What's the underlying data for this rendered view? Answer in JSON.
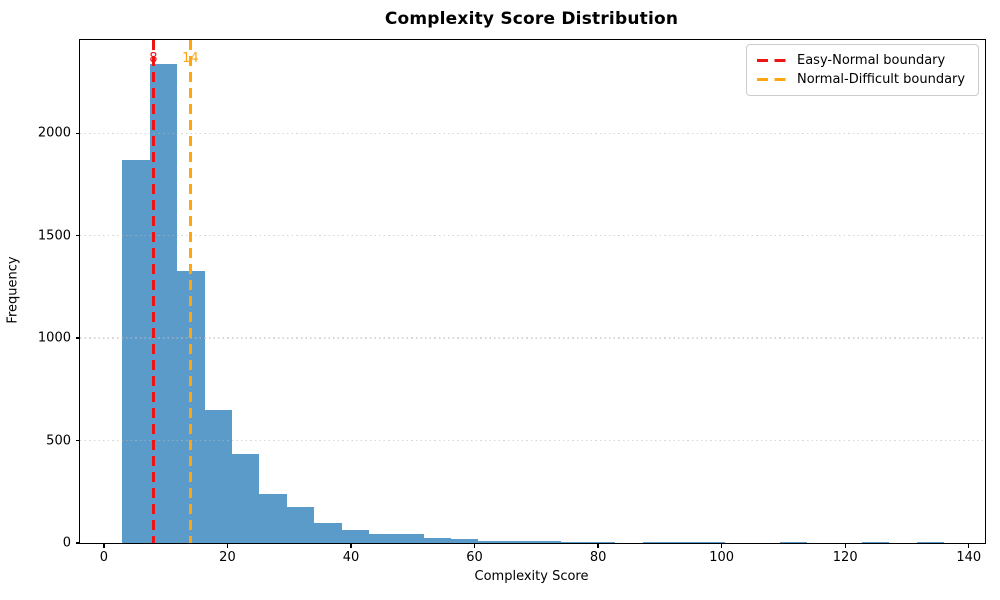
{
  "chart_data": {
    "type": "bar",
    "subtype": "histogram",
    "title": "Complexity Score Distribution",
    "xlabel": "Complexity Score",
    "ylabel": "Frequency",
    "bar_color": "#5b9bc9",
    "bin_edges": [
      3.0,
      7.43,
      11.87,
      16.3,
      20.73,
      25.17,
      29.6,
      34.03,
      38.47,
      42.9,
      47.33,
      51.77,
      56.2,
      60.63,
      65.07,
      69.5,
      73.93,
      78.37,
      82.8,
      87.23,
      91.67,
      96.1,
      100.53,
      104.97,
      109.4,
      113.83,
      118.27,
      122.7,
      127.13,
      131.57,
      136.0
    ],
    "values": [
      1870,
      2340,
      1330,
      650,
      435,
      240,
      178,
      97,
      65,
      45,
      45,
      26,
      18,
      10,
      10,
      8,
      4,
      4,
      0,
      6,
      6,
      5,
      0,
      0,
      6,
      0,
      0,
      6,
      0,
      6
    ],
    "xlim": [
      -3.87,
      142.63
    ],
    "ylim": [
      0,
      2455
    ],
    "xticks": [
      0,
      20,
      40,
      60,
      80,
      100,
      120,
      140
    ],
    "yticks": [
      0,
      500,
      1000,
      1500,
      2000
    ],
    "grid": "y-dotted",
    "grid_color": "#b9b9b9",
    "legend_position": "upper-right",
    "vlines": [
      {
        "x": 8,
        "label": "8",
        "color": "#ee1414",
        "legend_label": "Easy-Normal boundary"
      },
      {
        "x": 14,
        "label": "14",
        "color": "#ffa510",
        "legend_label": "Normal-Difficult boundary"
      }
    ]
  }
}
